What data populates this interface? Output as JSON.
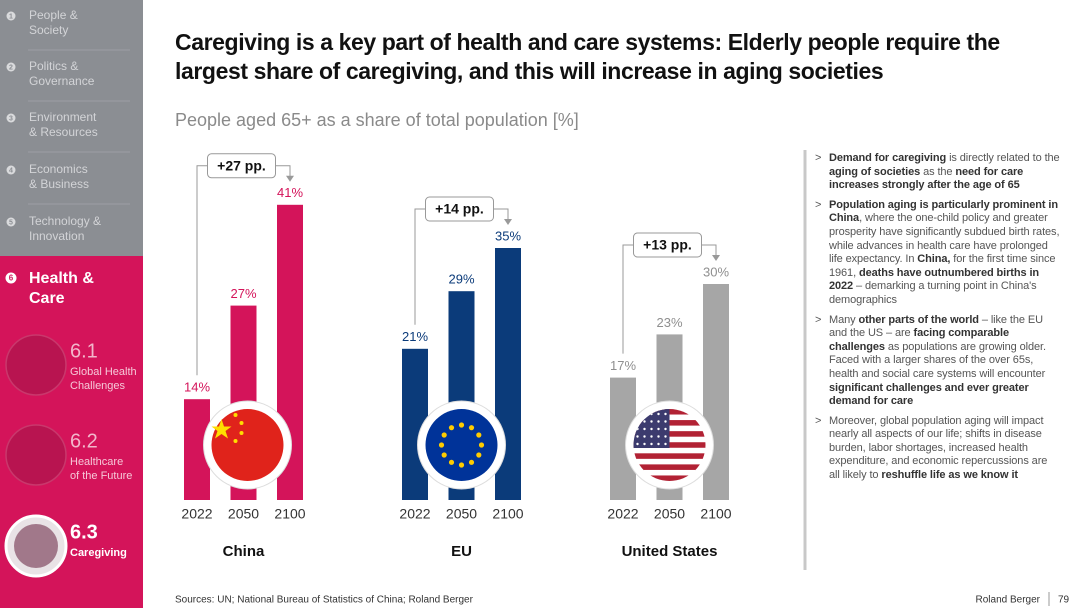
{
  "sidebar": {
    "items": [
      {
        "num": "1",
        "label": [
          "People &",
          "Society"
        ]
      },
      {
        "num": "2",
        "label": [
          "Politics &",
          "Governance"
        ]
      },
      {
        "num": "3",
        "label": [
          "Environment",
          "& Resources"
        ]
      },
      {
        "num": "4",
        "label": [
          "Economics",
          "& Business"
        ]
      },
      {
        "num": "5",
        "label": [
          "Technology &",
          "Innovation"
        ]
      }
    ],
    "active": {
      "num": "6",
      "label": [
        "Health &",
        "Care"
      ]
    },
    "subitems": [
      {
        "num": "6.1",
        "label": [
          "Global Health",
          "Challenges"
        ]
      },
      {
        "num": "6.2",
        "label": [
          "Healthcare",
          "of the Future"
        ]
      },
      {
        "num": "6.3",
        "label": [
          "Caregiving"
        ]
      }
    ]
  },
  "header": {
    "title": "Caregiving is a key part of health and care systems: Elderly people require the largest share of caregiving, and this will increase in aging societies",
    "subtitle": "People aged 65+ as a share of total population [%]"
  },
  "chart_data": [
    {
      "type": "bar",
      "title": "China",
      "categories": [
        "2022",
        "2050",
        "2100"
      ],
      "values": [
        14,
        27,
        41
      ],
      "value_labels": [
        "14%",
        "27%",
        "41%"
      ],
      "annotation": "+27 pp.",
      "color": "#d4145a",
      "ylim": [
        0,
        45
      ]
    },
    {
      "type": "bar",
      "title": "EU",
      "categories": [
        "2022",
        "2050",
        "2100"
      ],
      "values": [
        21,
        29,
        35
      ],
      "value_labels": [
        "21%",
        "29%",
        "35%"
      ],
      "annotation": "+14 pp.",
      "color": "#0b3b7a",
      "ylim": [
        0,
        45
      ]
    },
    {
      "type": "bar",
      "title": "United States",
      "categories": [
        "2022",
        "2050",
        "2100"
      ],
      "values": [
        17,
        23,
        30
      ],
      "value_labels": [
        "17%",
        "23%",
        "30%"
      ],
      "annotation": "+13 pp.",
      "color": "#a6a6a6",
      "ylim": [
        0,
        45
      ]
    }
  ],
  "notes": {
    "bullet": ">",
    "items": [
      [
        {
          "text": "Demand for caregiving",
          "bold": true
        },
        {
          "text": " is directly related to the ",
          "bold": false
        },
        {
          "text": "aging of societies",
          "bold": true
        },
        {
          "text": " as the ",
          "bold": false
        },
        {
          "text": "need for care increases strongly after the age of 65",
          "bold": true
        }
      ],
      [
        {
          "text": "Population aging is particularly prominent in China",
          "bold": true
        },
        {
          "text": ", where the one-child policy and greater prosperity have significantly subdued birth rates, while advances in health care have prolonged life expectancy. In ",
          "bold": false
        },
        {
          "text": "China,",
          "bold": true
        },
        {
          "text": " for the first time since 1961, ",
          "bold": false
        },
        {
          "text": "deaths have outnumbered births in 2022",
          "bold": true
        },
        {
          "text": " – demarking a turning point in China's demographics",
          "bold": false
        }
      ],
      [
        {
          "text": "Many ",
          "bold": false
        },
        {
          "text": "other parts of the world",
          "bold": true
        },
        {
          "text": " – like the EU and the US – are ",
          "bold": false
        },
        {
          "text": "facing comparable challenges",
          "bold": true
        },
        {
          "text": " as populations are growing older. Faced with a larger shares of the over 65s, health and social care systems will encounter ",
          "bold": false
        },
        {
          "text": "significant challenges and ever greater demand for care",
          "bold": true
        }
      ],
      [
        {
          "text": "Moreover, global population aging will impact nearly all aspects of our life; shifts in disease burden, labor shortages, increased health expenditure, and economic repercussions are all likely to ",
          "bold": false
        },
        {
          "text": "reshuffle life as we know it",
          "bold": true
        }
      ]
    ]
  },
  "footer": {
    "sources": "Sources: UN; National Bureau of Statistics of China; Roland Berger",
    "brand": "Roland Berger",
    "page": "79"
  }
}
